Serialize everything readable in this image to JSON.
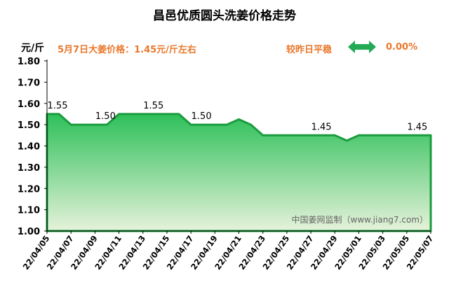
{
  "header": {
    "title": "昌邑优质圆头洗姜价格走势",
    "unit": "元/斤",
    "price_text": "5月7日大姜价格：1.45元/斤左右",
    "compare_text": "较昨日平稳",
    "compare_value": "0.00%",
    "compare_icon": "double-arrow-icon",
    "accent_color": "#e9782c",
    "arrow_color": "#22aa55"
  },
  "watermark": "中国姜网监制（www.jiang7.com）",
  "chart_data": {
    "type": "area",
    "x": [
      "22/04/05",
      "22/04/06",
      "22/04/07",
      "22/04/08",
      "22/04/09",
      "22/04/10",
      "22/04/11",
      "22/04/12",
      "22/04/13",
      "22/04/14",
      "22/04/15",
      "22/04/16",
      "22/04/17",
      "22/04/18",
      "22/04/19",
      "22/04/20",
      "22/04/21",
      "22/04/22",
      "22/04/23",
      "22/04/24",
      "22/04/25",
      "22/04/26",
      "22/04/27",
      "22/04/28",
      "22/04/29",
      "22/04/30",
      "22/05/01",
      "22/05/02",
      "22/05/03",
      "22/05/04",
      "22/05/05",
      "22/05/06",
      "22/05/07"
    ],
    "series": [
      {
        "values": [
          1.55,
          1.55,
          1.5,
          1.5,
          1.5,
          1.5,
          1.55,
          1.55,
          1.55,
          1.55,
          1.55,
          1.55,
          1.5,
          1.5,
          1.5,
          1.5,
          1.525,
          1.5,
          1.45,
          1.45,
          1.45,
          1.45,
          1.45,
          1.45,
          1.45,
          1.425,
          1.45,
          1.45,
          1.45,
          1.45,
          1.45,
          1.45,
          1.45
        ],
        "line_color": "#1a9c3e",
        "fill_top": "#2ec05a",
        "fill_bottom": "#e6f2da"
      }
    ],
    "xticks": [
      "22/04/05",
      "22/04/07",
      "22/04/09",
      "22/04/11",
      "22/04/13",
      "22/04/15",
      "22/04/17",
      "22/04/19",
      "22/04/21",
      "22/04/23",
      "22/04/25",
      "22/04/27",
      "22/04/29",
      "22/05/01",
      "22/05/03",
      "22/05/05",
      "22/05/07"
    ],
    "yticks": [
      "1.00",
      "1.10",
      "1.20",
      "1.30",
      "1.40",
      "1.50",
      "1.60",
      "1.70",
      "1.80"
    ],
    "ylim": [
      1.0,
      1.8
    ],
    "annotations": [
      {
        "x": "22/04/05",
        "text": "1.55"
      },
      {
        "x": "22/04/09",
        "text": "1.50"
      },
      {
        "x": "22/04/13",
        "text": "1.55"
      },
      {
        "x": "22/04/17",
        "text": "1.50"
      },
      {
        "x": "22/04/27",
        "text": "1.45"
      },
      {
        "x": "22/05/05",
        "text": "1.45"
      }
    ],
    "grid": false
  }
}
